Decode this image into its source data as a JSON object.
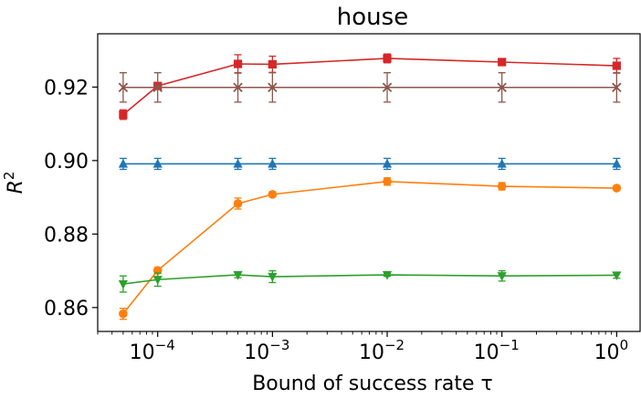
{
  "chart_data": {
    "type": "line",
    "title": "house",
    "xlabel": "Bound of success rate τ",
    "ylabel": "R²",
    "xscale": "log",
    "xlim": [
      3e-05,
      1.6
    ],
    "ylim": [
      0.8535,
      0.9345
    ],
    "x_ticks": [
      {
        "value": 0.0001,
        "label": "10",
        "exp": "−4"
      },
      {
        "value": 0.001,
        "label": "10",
        "exp": "−3"
      },
      {
        "value": 0.01,
        "label": "10",
        "exp": "−2"
      },
      {
        "value": 0.1,
        "label": "10",
        "exp": "−1"
      },
      {
        "value": 1,
        "label": "10",
        "exp": "0"
      }
    ],
    "y_ticks": [
      {
        "value": 0.86,
        "label": "0.86"
      },
      {
        "value": 0.88,
        "label": "0.88"
      },
      {
        "value": 0.9,
        "label": "0.90"
      },
      {
        "value": 0.92,
        "label": "0.92"
      }
    ],
    "x": [
      5e-05,
      0.0001,
      0.0005,
      0.001,
      0.01,
      0.1,
      1
    ],
    "series": [
      {
        "color": "#d62728",
        "marker": "square",
        "values": [
          0.9125,
          0.9203,
          0.9263,
          0.9262,
          0.9278,
          0.9268,
          0.9258
        ],
        "errors": [
          0.0013,
          0.0006,
          0.0025,
          0.0022,
          0.0012,
          0.0005,
          0.002
        ]
      },
      {
        "color": "#8c564b",
        "marker": "x",
        "values": [
          0.9199,
          0.9199,
          0.9199,
          0.9199,
          0.9199,
          0.9199,
          0.9199
        ],
        "errors": [
          0.004,
          0.004,
          0.004,
          0.004,
          0.004,
          0.004,
          0.004
        ]
      },
      {
        "color": "#1f77b4",
        "marker": "triangle-up",
        "values": [
          0.8991,
          0.8991,
          0.8991,
          0.8991,
          0.8991,
          0.8991,
          0.8991
        ],
        "errors": [
          0.0015,
          0.0015,
          0.0015,
          0.0015,
          0.0015,
          0.0015,
          0.0015
        ]
      },
      {
        "color": "#ff7f0e",
        "marker": "circle",
        "values": [
          0.8583,
          0.8701,
          0.8883,
          0.8908,
          0.8943,
          0.893,
          0.8925
        ],
        "errors": [
          0.0015,
          0.0008,
          0.0015,
          0.0007,
          0.001,
          0.001,
          0.0004
        ]
      },
      {
        "color": "#2ca02c",
        "marker": "triangle-down",
        "values": [
          0.8664,
          0.8676,
          0.8689,
          0.8684,
          0.8689,
          0.8686,
          0.8688
        ],
        "errors": [
          0.0022,
          0.0018,
          0.0008,
          0.0016,
          0.0004,
          0.0014,
          0.0008
        ]
      }
    ],
    "grid": false,
    "legend": false
  }
}
